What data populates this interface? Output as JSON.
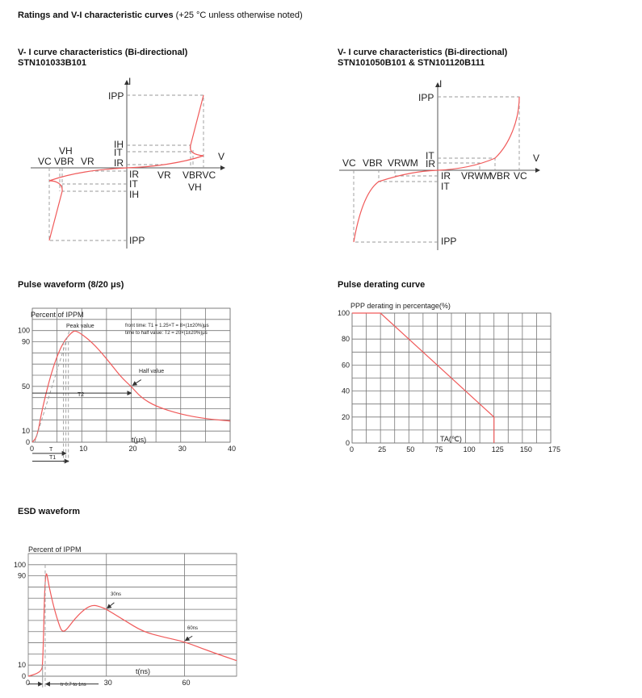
{
  "page": {
    "heading": "Ratings and V-I characteristic curves",
    "heading_note": "(+25 °C unless otherwise noted)"
  },
  "vi1": {
    "title": "V- I curve characteristics (Bi-directional)",
    "part": "STN101033B101",
    "labels": {
      "I": "I",
      "V": "V",
      "IPP_top": "IPP",
      "IH": "IH",
      "IT": "IT",
      "IR": "IR",
      "VC_left": "VC",
      "VBR_left": "VBR",
      "VH_left": "VH",
      "VR_left": "VR",
      "IR_low": "IR",
      "IT_low": "IT",
      "IH_low": "IH",
      "VR_right": "VR",
      "VBRVC_right": "VBRVC",
      "VH_right": "VH",
      "IPP_bottom": "IPP"
    }
  },
  "vi2": {
    "title": "V- I curve characteristics (Bi-directional)",
    "part": "STN101050B101 & STN101120B111",
    "labels": {
      "I": "I",
      "V": "V",
      "IPP_top": "IPP",
      "IT": "IT",
      "IR": "IR",
      "VC_left": "VC",
      "VBR_left": "VBR",
      "VRWM_left": "VRWM",
      "IR_low": "IR",
      "IT_low": "IT",
      "VRWM_right": "VRWM",
      "VBR_right": "VBR",
      "VC_right": "VC",
      "IPP_bottom": "IPP"
    }
  },
  "chart_data": [
    {
      "id": "pulse",
      "type": "line",
      "title": "Pulse waveform (8/20 μs)",
      "ylabel": "Percent of IPPM",
      "xlabel": "t(μs)",
      "xlim": [
        0,
        40
      ],
      "ylim": [
        0,
        120
      ],
      "xticks": [
        "0",
        "10",
        "20",
        "30",
        "40"
      ],
      "yticks": [
        "0",
        "10",
        "50",
        "90",
        "100"
      ],
      "grid": true,
      "annotations": {
        "peak": "Peak value",
        "half": "Half value",
        "T": "T",
        "T1": "T1",
        "T2": "T2",
        "front": "front time: T1 = 1.25×T = 8×(1±20%)μs",
        "halftime": "time to half value: T2 = 20×(1±20%)μs"
      },
      "x": [
        0,
        1,
        2,
        4,
        6,
        8,
        9,
        12,
        15,
        18,
        20,
        22,
        25,
        30,
        35,
        40
      ],
      "y": [
        0,
        5,
        30,
        65,
        88,
        99,
        100,
        90,
        75,
        58,
        50,
        40,
        32,
        25,
        21,
        19
      ],
      "color": "#f05a5a"
    },
    {
      "id": "derating",
      "type": "line",
      "title": "Pulse derating curve",
      "ylabel": "PPP derating in percentage(%)",
      "xlabel": "TA(℃)",
      "xlim": [
        0,
        175
      ],
      "ylim": [
        0,
        100
      ],
      "xticks": [
        "0",
        "25",
        "50",
        "75",
        "100",
        "125",
        "150",
        "175"
      ],
      "yticks": [
        "0",
        "20",
        "40",
        "60",
        "80",
        "100"
      ],
      "grid": true,
      "x": [
        0,
        25,
        125,
        125
      ],
      "y": [
        100,
        100,
        20,
        0
      ],
      "color": "#f05a5a"
    },
    {
      "id": "esd",
      "type": "line",
      "title": "ESD waveform",
      "ylabel": "Percent of IPPM",
      "xlabel": "t(ns)",
      "xlim": [
        0,
        80
      ],
      "ylim": [
        0,
        110
      ],
      "xticks": [
        "0",
        "30",
        "60"
      ],
      "yticks": [
        "0",
        "10",
        "90",
        "100"
      ],
      "grid": true,
      "annotations": {
        "a30": "30ns",
        "a60": "60ns",
        "tr": "tr 0.7 to 1ns"
      },
      "x": [
        0,
        3,
        5,
        5.6,
        6.5,
        8,
        10,
        12,
        13,
        14.5,
        18,
        22,
        25,
        28,
        30,
        37,
        44,
        52,
        60,
        70,
        80
      ],
      "y": [
        0,
        2,
        5,
        10,
        100,
        80,
        60,
        45,
        40,
        41,
        52,
        61,
        64,
        62,
        60,
        50,
        40,
        35,
        31,
        22,
        14
      ],
      "color": "#f05a5a"
    }
  ]
}
